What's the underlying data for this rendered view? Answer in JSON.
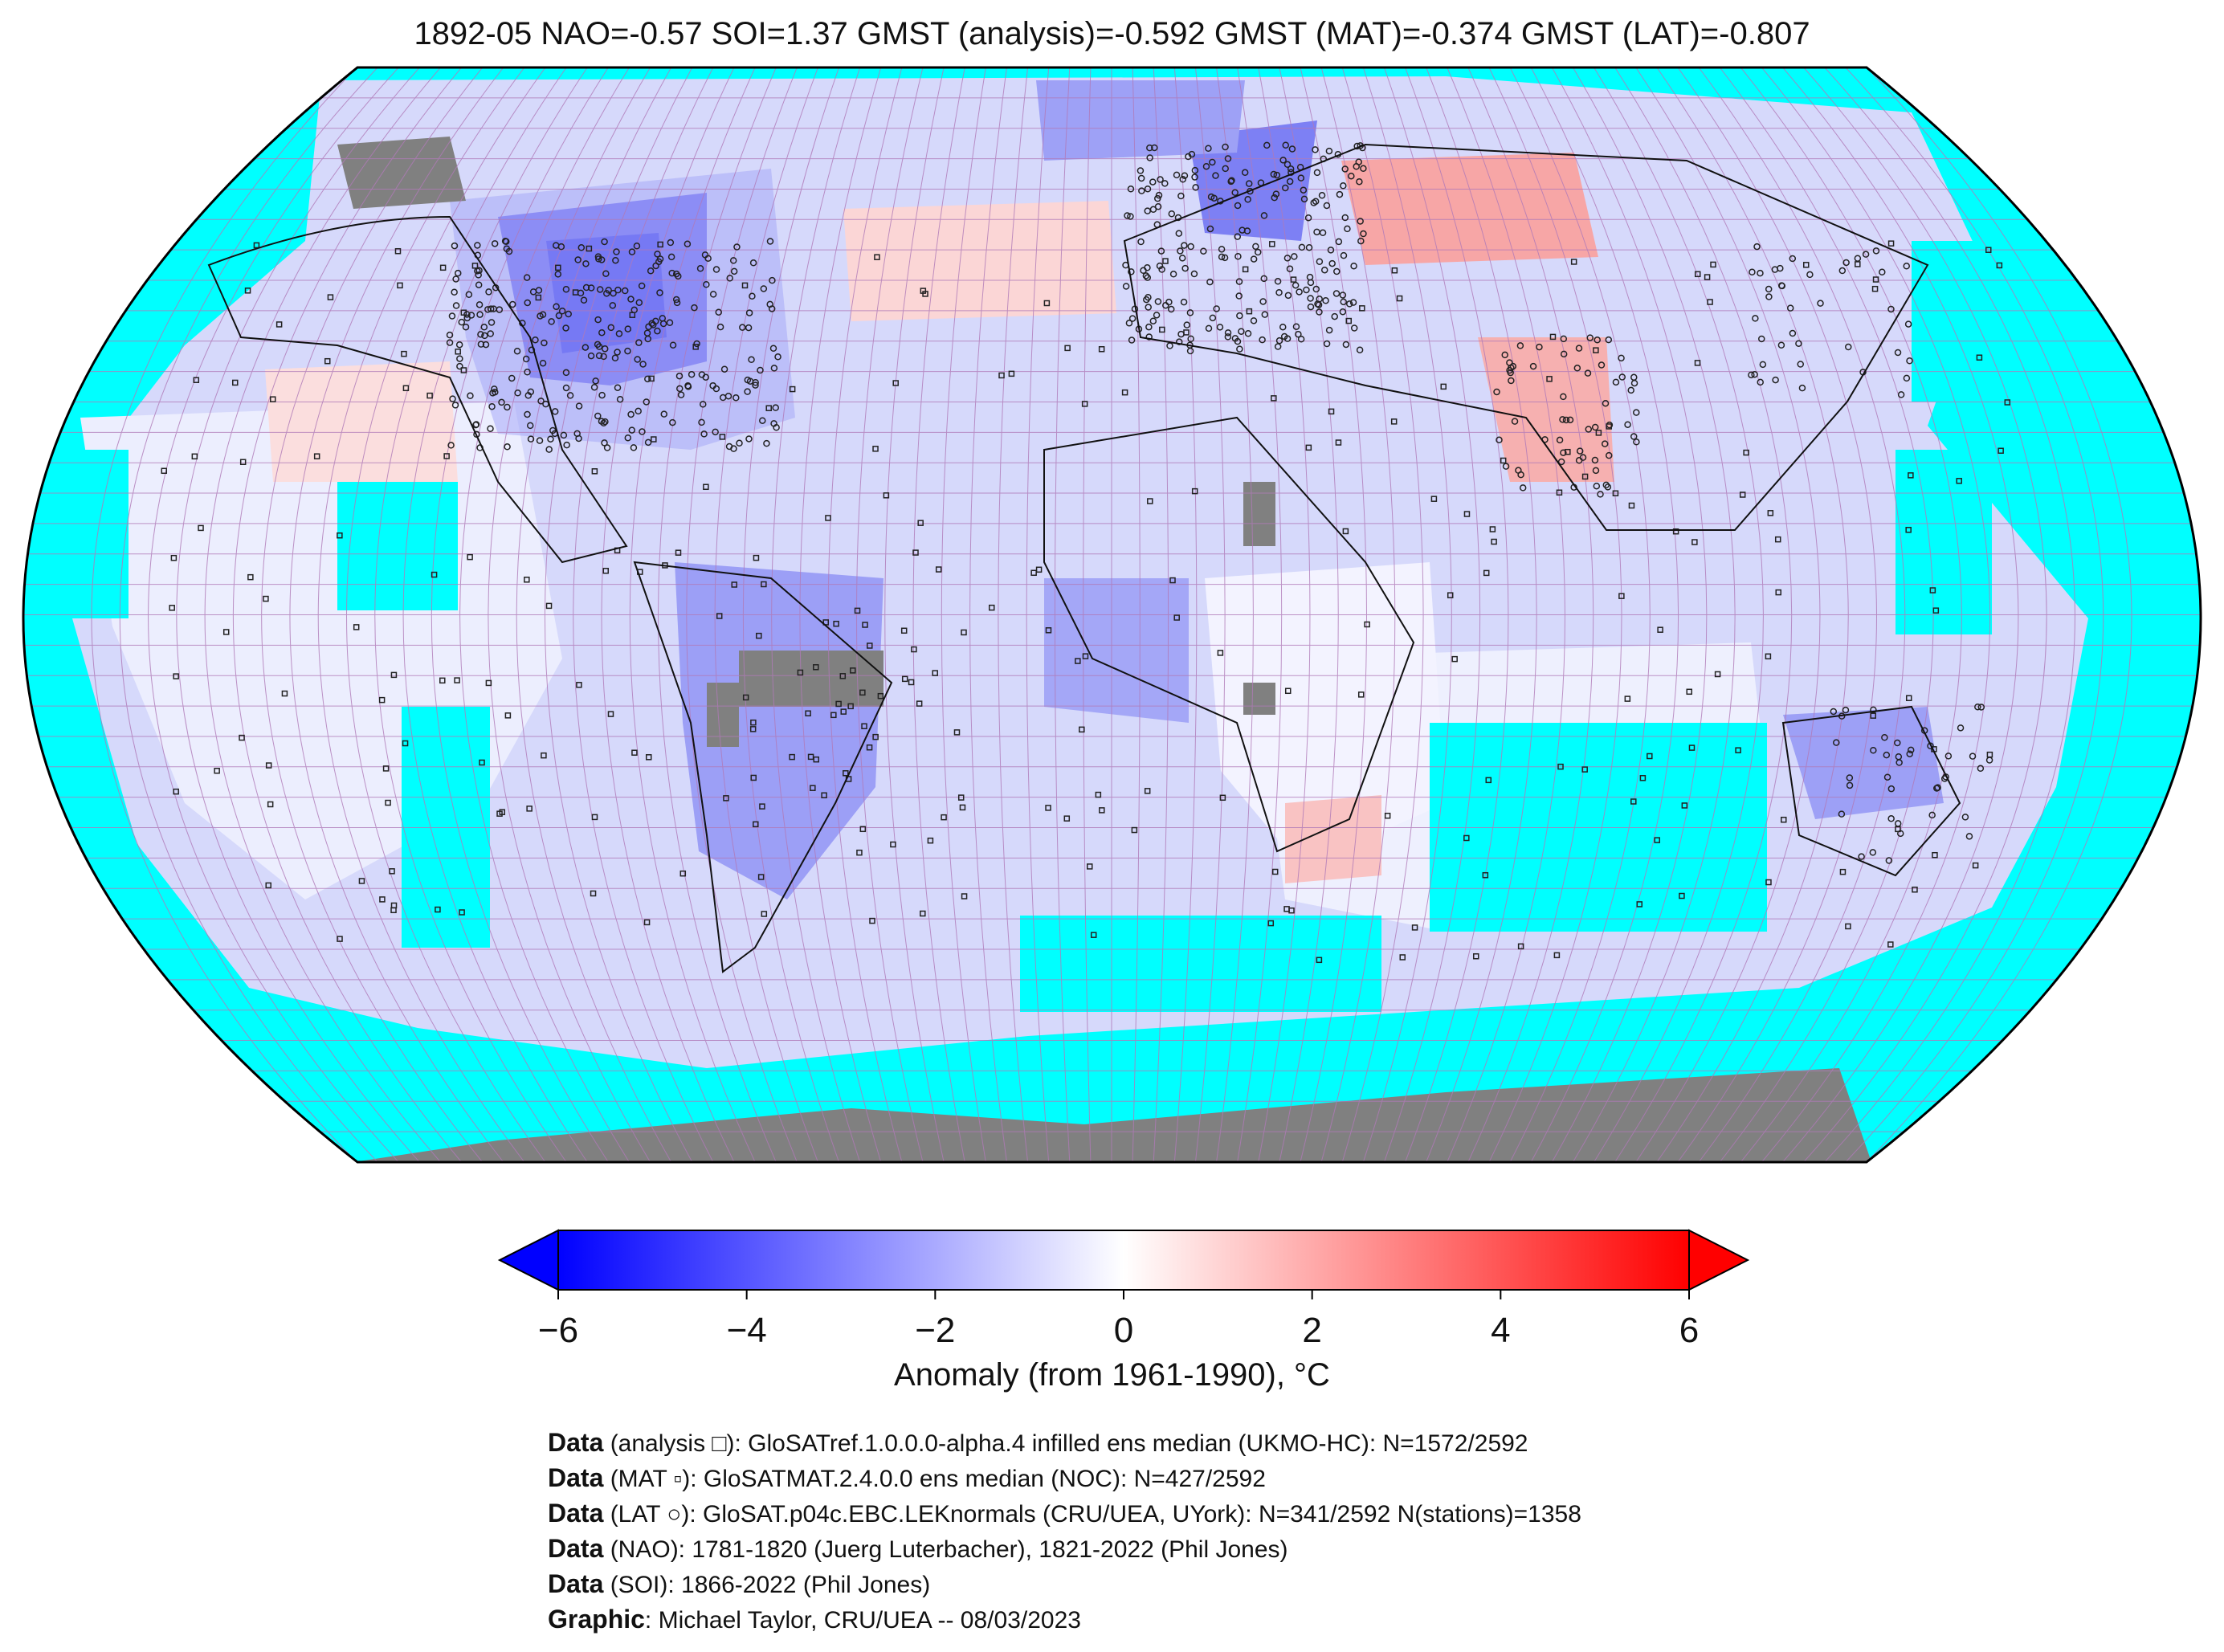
{
  "title": "1892-05 NAO=-0.57 SOI=1.37 GMST (analysis)=-0.592 GMST (MAT)=-0.374 GMST (LAT)=-0.807",
  "colorbar": {
    "label": "Anomaly (from 1961-1990), °C",
    "ticks": [
      "−6",
      "−4",
      "−2",
      "0",
      "2",
      "4",
      "6"
    ],
    "range": [
      -6,
      6
    ],
    "colors": {
      "cold": "#0000ff",
      "mid": "#ffffff",
      "warm": "#ff0000"
    }
  },
  "colors": {
    "ocean_no_data": "#00ffff",
    "land_no_data": "#808080",
    "gridline": "#b07ab8"
  },
  "credits": [
    {
      "key": "Data",
      "text": " (analysis □): GloSATref.1.0.0.0-alpha.4 infilled ens median (UKMO-HC): N=1572/2592"
    },
    {
      "key": "Data",
      "text": " (MAT ▫): GloSATMAT.2.4.0.0 ens median (NOC): N=427/2592"
    },
    {
      "key": "Data",
      "text": " (LAT ○): GloSAT.p04c.EBC.LEKnormals (CRU/UEA, UYork): N=341/2592 N(stations)=1358"
    },
    {
      "key": "Data",
      "text": " (NAO): 1781-1820 (Juerg Luterbacher), 1821-2022 (Phil Jones)"
    },
    {
      "key": "Data",
      "text": " (SOI): 1866-2022 (Phil Jones)"
    },
    {
      "key": "Graphic",
      "text": ": Michael Taylor, CRU/UEA -- 08/03/2023"
    }
  ]
}
